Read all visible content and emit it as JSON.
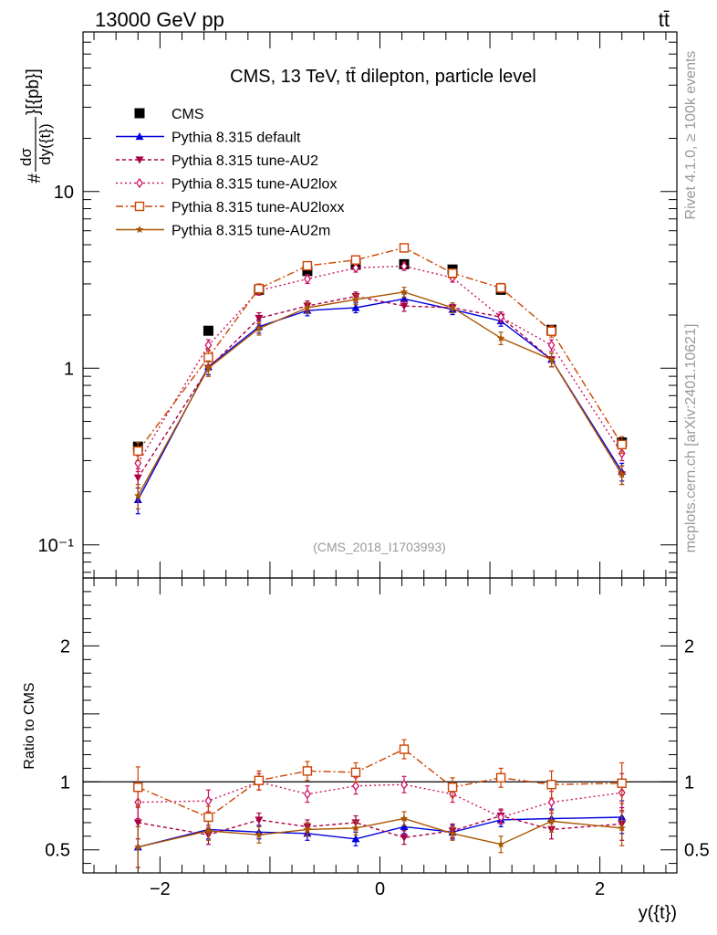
{
  "header": {
    "left": "13000 GeV pp",
    "right": "tt̄"
  },
  "side_texts": {
    "rivet": "Rivet 4.1.0, ≥ 100k events",
    "mcplots": "mcplots.cern.ch [arXiv:2401.10621]"
  },
  "chart_data": [
    {
      "type": "line",
      "panel": "main",
      "title": "CMS, 13 TeV, tt̄ dilepton, particle level",
      "watermark": "(CMS_2018_I1703993)",
      "ylabel_prefix": "#",
      "ylabel_num": "dσ",
      "ylabel_den": "dy({t})",
      "ylabel_suffix": "}[{pb}]",
      "yscale": "log",
      "ylim": [
        0.065,
        80
      ],
      "xlim": [
        -2.7,
        2.7
      ],
      "yticks": [
        {
          "value": 10,
          "label": "10"
        },
        {
          "value": 1,
          "label": "1"
        },
        {
          "value": 0.1,
          "label": "10⁻¹"
        }
      ],
      "x": [
        -2.2,
        -1.56,
        -1.1,
        -0.66,
        -0.22,
        0.22,
        0.66,
        1.1,
        1.56,
        2.2
      ],
      "legend_position": "top-left",
      "series": [
        {
          "name": "CMS",
          "color": "#000000",
          "marker": "square-filled",
          "dash": "none",
          "values": [
            0.36,
            1.63,
            2.78,
            3.55,
            3.85,
            3.88,
            3.62,
            2.78,
            1.65,
            0.38
          ],
          "errors": [
            0.02,
            0.05,
            0.08,
            0.09,
            0.09,
            0.09,
            0.09,
            0.08,
            0.05,
            0.02
          ]
        },
        {
          "name": "Pythia 8.315 default",
          "color": "#0000dd",
          "marker": "triangle-up-filled",
          "dash": "none",
          "values": [
            0.18,
            1.02,
            1.72,
            2.12,
            2.2,
            2.47,
            2.15,
            1.85,
            1.12,
            0.26
          ],
          "errors": [
            0.03,
            0.1,
            0.14,
            0.14,
            0.14,
            0.16,
            0.14,
            0.12,
            0.1,
            0.03
          ]
        },
        {
          "name": "Pythia 8.315 tune-AU2",
          "color": "#aa0044",
          "marker": "triangle-down-filled",
          "dash": "4,3",
          "values": [
            0.24,
            1.0,
            1.92,
            2.25,
            2.55,
            2.25,
            2.2,
            1.95,
            1.12,
            0.25
          ],
          "errors": [
            0.03,
            0.1,
            0.14,
            0.15,
            0.15,
            0.15,
            0.14,
            0.13,
            0.1,
            0.03
          ]
        },
        {
          "name": "Pythia 8.315 tune-AU2lox",
          "color": "#cc1166",
          "marker": "diamond-open",
          "dash": "2,3",
          "values": [
            0.29,
            1.35,
            2.75,
            3.2,
            3.7,
            3.78,
            3.25,
            1.95,
            1.35,
            0.33
          ],
          "errors": [
            0.03,
            0.1,
            0.16,
            0.18,
            0.2,
            0.2,
            0.18,
            0.13,
            0.1,
            0.03
          ]
        },
        {
          "name": "Pythia 8.315 tune-AU2loxx",
          "color": "#cc4400",
          "marker": "square-open",
          "dash": "8,3,2,3",
          "values": [
            0.34,
            1.15,
            2.82,
            3.8,
            4.1,
            4.8,
            3.45,
            2.85,
            1.62,
            0.37
          ],
          "errors": [
            0.04,
            0.12,
            0.18,
            0.2,
            0.22,
            0.25,
            0.2,
            0.17,
            0.12,
            0.04
          ]
        },
        {
          "name": "Pythia 8.315 tune-AU2m",
          "color": "#aa5500",
          "marker": "star",
          "dash": "none",
          "values": [
            0.19,
            1.0,
            1.68,
            2.2,
            2.45,
            2.7,
            2.2,
            1.48,
            1.12,
            0.25
          ],
          "errors": [
            0.03,
            0.1,
            0.14,
            0.15,
            0.16,
            0.17,
            0.14,
            0.12,
            0.1,
            0.03
          ]
        }
      ]
    },
    {
      "type": "line",
      "panel": "ratio",
      "ylabel": "Ratio to CMS",
      "xlabel": "y({t})",
      "ylim": [
        0.33,
        2.5
      ],
      "xlim": [
        -2.7,
        2.7
      ],
      "yticks": [
        {
          "value": 2,
          "label": "2"
        },
        {
          "value": 1,
          "label": "1"
        },
        {
          "value": 0.5,
          "label": "0.5"
        }
      ],
      "xticks": [
        {
          "value": -2,
          "label": "−2"
        },
        {
          "value": 0,
          "label": "0"
        },
        {
          "value": 2,
          "label": "2"
        }
      ],
      "reference_line": 1,
      "x": [
        -2.2,
        -1.56,
        -1.1,
        -0.66,
        -0.22,
        0.22,
        0.66,
        1.1,
        1.56,
        2.2
      ],
      "series": [
        {
          "name": "Pythia 8.315 default",
          "color": "#0000dd",
          "marker": "triangle-up-filled",
          "dash": "none",
          "values": [
            0.52,
            0.65,
            0.63,
            0.62,
            0.58,
            0.67,
            0.63,
            0.72,
            0.73,
            0.74
          ],
          "errors": [
            0.15,
            0.07,
            0.05,
            0.05,
            0.05,
            0.05,
            0.05,
            0.05,
            0.07,
            0.12
          ]
        },
        {
          "name": "Pythia 8.315 tune-AU2",
          "color": "#aa0044",
          "marker": "triangle-down-filled",
          "dash": "4,3",
          "values": [
            0.7,
            0.61,
            0.72,
            0.67,
            0.7,
            0.59,
            0.64,
            0.75,
            0.65,
            0.69
          ],
          "errors": [
            0.12,
            0.07,
            0.05,
            0.05,
            0.05,
            0.05,
            0.05,
            0.05,
            0.07,
            0.12
          ]
        },
        {
          "name": "Pythia 8.315 tune-AU2lox",
          "color": "#cc1166",
          "marker": "diamond-open",
          "dash": "2,3",
          "values": [
            0.85,
            0.86,
            1.0,
            0.91,
            0.97,
            0.98,
            0.91,
            0.74,
            0.85,
            0.92
          ],
          "errors": [
            0.12,
            0.08,
            0.06,
            0.06,
            0.06,
            0.06,
            0.06,
            0.05,
            0.08,
            0.14
          ]
        },
        {
          "name": "Pythia 8.315 tune-AU2loxx",
          "color": "#cc4400",
          "marker": "square-open",
          "dash": "8,3,2,3",
          "values": [
            0.96,
            0.74,
            1.01,
            1.08,
            1.07,
            1.24,
            0.96,
            1.03,
            0.98,
            0.99
          ],
          "errors": [
            0.15,
            0.08,
            0.07,
            0.07,
            0.07,
            0.07,
            0.07,
            0.07,
            0.1,
            0.15
          ]
        },
        {
          "name": "Pythia 8.315 tune-AU2m",
          "color": "#aa5500",
          "marker": "star",
          "dash": "none",
          "values": [
            0.52,
            0.64,
            0.61,
            0.65,
            0.66,
            0.73,
            0.62,
            0.54,
            0.71,
            0.66
          ],
          "errors": [
            0.15,
            0.07,
            0.06,
            0.05,
            0.05,
            0.05,
            0.05,
            0.06,
            0.08,
            0.13
          ]
        }
      ]
    }
  ]
}
